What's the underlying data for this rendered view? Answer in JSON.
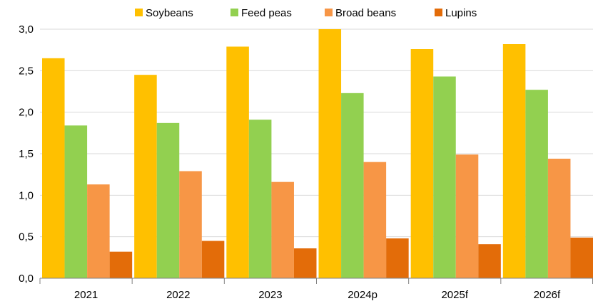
{
  "chart_data": {
    "type": "bar",
    "categories": [
      "2021",
      "2022",
      "2023",
      "2024p",
      "2025f",
      "2026f"
    ],
    "series": [
      {
        "name": "Soybeans",
        "color": "#FFC000",
        "values": [
          2.65,
          2.45,
          2.79,
          3.0,
          2.76,
          2.82
        ]
      },
      {
        "name": "Feed peas",
        "color": "#92D050",
        "values": [
          1.84,
          1.87,
          1.91,
          2.23,
          2.43,
          2.27
        ]
      },
      {
        "name": "Broad beans",
        "color": "#F79646",
        "values": [
          1.13,
          1.29,
          1.16,
          1.4,
          1.49,
          1.44
        ]
      },
      {
        "name": "Lupins",
        "color": "#E36C09",
        "values": [
          0.32,
          0.45,
          0.36,
          0.48,
          0.41,
          0.49
        ]
      }
    ],
    "ylim": [
      0,
      3
    ],
    "yticks": [
      "0,0",
      "0,5",
      "1,0",
      "1,5",
      "2,0",
      "2,5",
      "3,0"
    ],
    "grid": true,
    "legend_position": "top"
  }
}
